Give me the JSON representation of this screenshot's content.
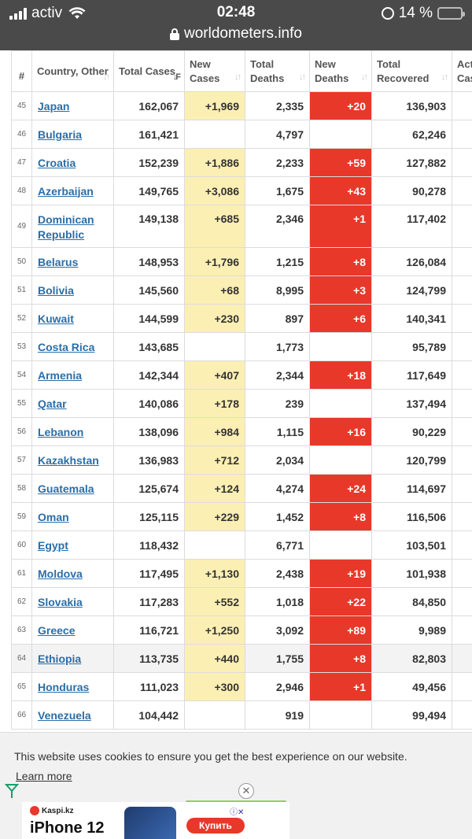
{
  "status": {
    "carrier": "activ",
    "time": "02:48",
    "battery": "14 %",
    "battery_level": 0.14
  },
  "browser": {
    "url": "worldometers.info"
  },
  "table": {
    "headers": {
      "idx": "#",
      "country": "Country, Other",
      "total_cases": "Total Cases",
      "new_cases": "New Cases",
      "total_deaths": "Total Deaths",
      "new_deaths": "New Deaths",
      "total_recovered": "Total Recovered",
      "active_cases": "Act Cas"
    },
    "rows": [
      {
        "idx": "45",
        "country": "Japan",
        "total_cases": "162,067",
        "new_cases": "+1,969",
        "total_deaths": "2,335",
        "new_deaths": "+20",
        "total_recovered": "136,903"
      },
      {
        "idx": "46",
        "country": "Bulgaria",
        "total_cases": "161,421",
        "new_cases": "",
        "total_deaths": "4,797",
        "new_deaths": "",
        "total_recovered": "62,246"
      },
      {
        "idx": "47",
        "country": "Croatia",
        "total_cases": "152,239",
        "new_cases": "+1,886",
        "total_deaths": "2,233",
        "new_deaths": "+59",
        "total_recovered": "127,882"
      },
      {
        "idx": "48",
        "country": "Azerbaijan",
        "total_cases": "149,765",
        "new_cases": "+3,086",
        "total_deaths": "1,675",
        "new_deaths": "+43",
        "total_recovered": "90,278"
      },
      {
        "idx": "49",
        "country": "Dominican Republic",
        "total_cases": "149,138",
        "new_cases": "+685",
        "total_deaths": "2,346",
        "new_deaths": "+1",
        "total_recovered": "117,402"
      },
      {
        "idx": "50",
        "country": "Belarus",
        "total_cases": "148,953",
        "new_cases": "+1,796",
        "total_deaths": "1,215",
        "new_deaths": "+8",
        "total_recovered": "126,084"
      },
      {
        "idx": "51",
        "country": "Bolivia",
        "total_cases": "145,560",
        "new_cases": "+68",
        "total_deaths": "8,995",
        "new_deaths": "+3",
        "total_recovered": "124,799"
      },
      {
        "idx": "52",
        "country": "Kuwait",
        "total_cases": "144,599",
        "new_cases": "+230",
        "total_deaths": "897",
        "new_deaths": "+6",
        "total_recovered": "140,341"
      },
      {
        "idx": "53",
        "country": "Costa Rica",
        "total_cases": "143,685",
        "new_cases": "",
        "total_deaths": "1,773",
        "new_deaths": "",
        "total_recovered": "95,789"
      },
      {
        "idx": "54",
        "country": "Armenia",
        "total_cases": "142,344",
        "new_cases": "+407",
        "total_deaths": "2,344",
        "new_deaths": "+18",
        "total_recovered": "117,649"
      },
      {
        "idx": "55",
        "country": "Qatar",
        "total_cases": "140,086",
        "new_cases": "+178",
        "total_deaths": "239",
        "new_deaths": "",
        "total_recovered": "137,494"
      },
      {
        "idx": "56",
        "country": "Lebanon",
        "total_cases": "138,096",
        "new_cases": "+984",
        "total_deaths": "1,115",
        "new_deaths": "+16",
        "total_recovered": "90,229"
      },
      {
        "idx": "57",
        "country": "Kazakhstan",
        "total_cases": "136,983",
        "new_cases": "+712",
        "total_deaths": "2,034",
        "new_deaths": "",
        "total_recovered": "120,799"
      },
      {
        "idx": "58",
        "country": "Guatemala",
        "total_cases": "125,674",
        "new_cases": "+124",
        "total_deaths": "4,274",
        "new_deaths": "+24",
        "total_recovered": "114,697"
      },
      {
        "idx": "59",
        "country": "Oman",
        "total_cases": "125,115",
        "new_cases": "+229",
        "total_deaths": "1,452",
        "new_deaths": "+8",
        "total_recovered": "116,506"
      },
      {
        "idx": "60",
        "country": "Egypt",
        "total_cases": "118,432",
        "new_cases": "",
        "total_deaths": "6,771",
        "new_deaths": "",
        "total_recovered": "103,501"
      },
      {
        "idx": "61",
        "country": "Moldova",
        "total_cases": "117,495",
        "new_cases": "+1,130",
        "total_deaths": "2,438",
        "new_deaths": "+19",
        "total_recovered": "101,938"
      },
      {
        "idx": "62",
        "country": "Slovakia",
        "total_cases": "117,283",
        "new_cases": "+552",
        "total_deaths": "1,018",
        "new_deaths": "+22",
        "total_recovered": "84,850"
      },
      {
        "idx": "63",
        "country": "Greece",
        "total_cases": "116,721",
        "new_cases": "+1,250",
        "total_deaths": "3,092",
        "new_deaths": "+89",
        "total_recovered": "9,989"
      },
      {
        "idx": "64",
        "country": "Ethiopia",
        "total_cases": "113,735",
        "new_cases": "+440",
        "total_deaths": "1,755",
        "new_deaths": "+8",
        "total_recovered": "82,803"
      },
      {
        "idx": "65",
        "country": "Honduras",
        "total_cases": "111,023",
        "new_cases": "+300",
        "total_deaths": "2,946",
        "new_deaths": "+1",
        "total_recovered": "49,456"
      },
      {
        "idx": "66",
        "country": "Venezuela",
        "total_cases": "104,442",
        "new_cases": "",
        "total_deaths": "919",
        "new_deaths": "",
        "total_recovered": "99,494"
      }
    ]
  },
  "cookie": {
    "text": "This website uses cookies to ensure you get the best experience on our website.",
    "learn_more": "Learn more"
  },
  "ad": {
    "close": "✕",
    "brand": "Kaspi.kz",
    "title": "iPhone 12",
    "buy": "Купить",
    "badges": "ⓘ✕"
  },
  "colors": {
    "topbar": "#4a4a4a",
    "new_cases_bg": "#fcefb4",
    "new_deaths_bg": "#e8382a",
    "link": "#2a6ea8"
  }
}
